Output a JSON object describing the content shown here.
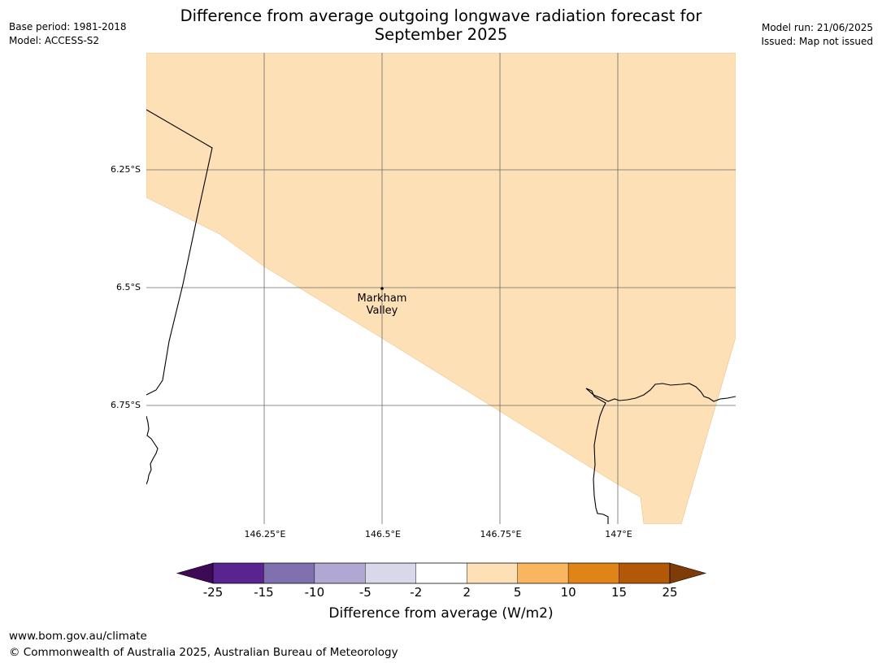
{
  "header": {
    "title_line1": "Difference from average outgoing longwave radiation forecast for",
    "title_line2": "September 2025",
    "base_period": "Base period: 1981-2018",
    "model": "Model: ACCESS-S2",
    "model_run": "Model run: 21/06/2025",
    "issued": "Issued: Map not issued"
  },
  "map": {
    "lat_labels": [
      "6.25°S",
      "6.5°S",
      "6.75°S"
    ],
    "lon_labels": [
      "146.25°E",
      "146.5°E",
      "146.75°E",
      "147°E"
    ],
    "place": {
      "line1": "Markham",
      "line2": "Valley"
    },
    "shaded_category": "2 to 5",
    "shaded_color": "#fde0b6",
    "land_color": "#ffffff"
  },
  "colorbar": {
    "label": "Difference from average (W/m2)",
    "ticks": [
      "-25",
      "-15",
      "-10",
      "-5",
      "-2",
      "2",
      "5",
      "10",
      "15",
      "25"
    ],
    "colors": [
      "#3f0a55",
      "#5a2490",
      "#8070b0",
      "#b0a8d2",
      "#d8d8ea",
      "#ffffff",
      "#fde0b6",
      "#f9b660",
      "#e08417",
      "#b35806",
      "#7f3b08"
    ]
  },
  "footer": {
    "url": "www.bom.gov.au/climate",
    "copyright": "© Commonwealth of Australia 2025, Australian Bureau of Meteorology"
  }
}
